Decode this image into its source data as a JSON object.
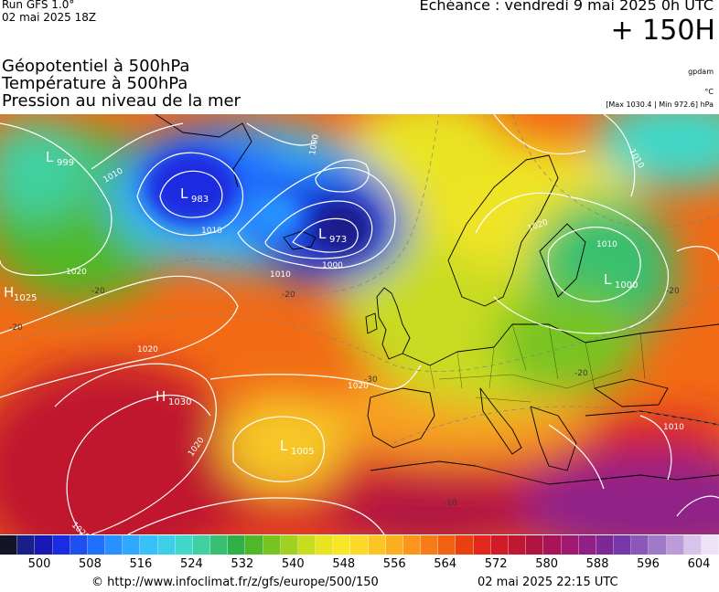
{
  "header": {
    "run": "Run GFS 1.0°",
    "run_date": "02 mai 2025 18Z",
    "echeance": "Echéance : vendredi 9 mai 2025 0h UTC",
    "horizon": "+ 150H"
  },
  "titles": {
    "line1": "Géopotentiel à 500hPa",
    "line2": "Température à 500hPa",
    "line3": "Pression au niveau de la mer"
  },
  "units": {
    "geopotential": "gpdam",
    "temperature": "°C",
    "pressure": "[Max 1030.4 | Min 972.6] hPa"
  },
  "pressure_centers": [
    {
      "type": "L",
      "value": "999"
    },
    {
      "type": "L",
      "value": "983"
    },
    {
      "type": "L",
      "value": "973"
    },
    {
      "type": "L",
      "value": "1000"
    },
    {
      "type": "H",
      "value": "1025"
    },
    {
      "type": "H",
      "value": "1030"
    },
    {
      "type": "L",
      "value": "1005"
    }
  ],
  "isobar_labels": [
    "1010",
    "1010",
    "1000",
    "1010",
    "1020",
    "1020",
    "1020",
    "1020",
    "1020",
    "1010",
    "1010",
    "1010",
    "1020",
    "1000"
  ],
  "isotherm_labels": [
    "-20",
    "-20",
    "-20",
    "-20",
    "-30",
    "-20",
    "-10"
  ],
  "legend": {
    "colors": [
      "#141428",
      "#1a1e8a",
      "#1818b4",
      "#1a2ce0",
      "#1e50f0",
      "#2070ff",
      "#2890ff",
      "#30a8ff",
      "#38c0f8",
      "#3cd0e8",
      "#40d8c8",
      "#40d0a0",
      "#38c070",
      "#30b048",
      "#50b828",
      "#78c420",
      "#a0d020",
      "#c8dc20",
      "#e8e420",
      "#f8e628",
      "#fcd828",
      "#fcc424",
      "#fcae20",
      "#fa961c",
      "#f67c18",
      "#f26014",
      "#ea4010",
      "#e2281c",
      "#d01c28",
      "#c01834",
      "#b01442",
      "#a81458",
      "#a01870",
      "#902088",
      "#7e2898",
      "#7638a6",
      "#8a58b8",
      "#a07ac8",
      "#bc9cd8",
      "#d8c4ea",
      "#ece4f6"
    ],
    "ticks": [
      "500",
      "508",
      "516",
      "524",
      "532",
      "540",
      "548",
      "556",
      "564",
      "572",
      "580",
      "588",
      "596",
      "604"
    ]
  },
  "footer": {
    "url": "© http://www.infoclimat.fr/z/gfs/europe/500/150",
    "time": "02 mai 2025 22:15 UTC"
  }
}
